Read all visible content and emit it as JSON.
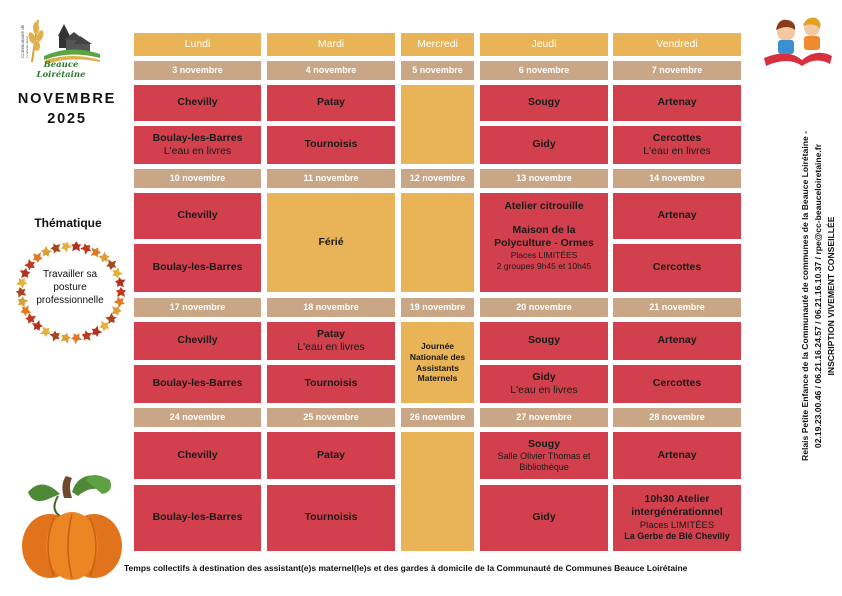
{
  "logo": {
    "name": "Beauce Loirétaine",
    "vertical": "Communauté de communes"
  },
  "title": {
    "line1": "NOVEMBRE",
    "line2": "2025"
  },
  "theme": {
    "label": "Thématique",
    "text": "Travailler sa posture professionnelle"
  },
  "days": [
    "Lundi",
    "Mardi",
    "Mercredi",
    "Jeudi",
    "Vendredi"
  ],
  "weeks": [
    {
      "dates": [
        "3 novembre",
        "4 novembre",
        "5 novembre",
        "6 novembre",
        "7 novembre"
      ],
      "lundi": {
        "a": "Chevilly",
        "b": "Boulay-les-Barres",
        "b_sub": "L'eau en livres"
      },
      "mardi": {
        "a": "Patay",
        "b": "Tournoisis"
      },
      "jeudi": {
        "a": "Sougy",
        "b": "Gidy"
      },
      "vendredi": {
        "a": "Artenay",
        "b": "Cercottes",
        "b_sub": "L'eau en livres"
      }
    },
    {
      "dates": [
        "10 novembre",
        "11 novembre",
        "12 novembre",
        "13 novembre",
        "14 novembre"
      ],
      "lundi": {
        "a": "Chevilly",
        "b": "Boulay-les-Barres"
      },
      "mardi": {
        "ferie": "Férié"
      },
      "jeudi": {
        "title": "Atelier citrouille",
        "place1": "Maison de la",
        "place2": "Polyculture - Ormes",
        "limit": "Places LIMITÉES",
        "groups": "2 groupes 9h45 et 10h45"
      },
      "vendredi": {
        "a": "Artenay",
        "b": "Cercottes"
      }
    },
    {
      "dates": [
        "17 novembre",
        "18 novembre",
        "19 novembre",
        "20 novembre",
        "21 novembre"
      ],
      "lundi": {
        "a": "Chevilly",
        "b": "Boulay-les-Barres"
      },
      "mardi": {
        "a": "Patay",
        "a_sub": "L'eau en livres",
        "b": "Tournoisis"
      },
      "mercredi": [
        "Journée",
        "Nationale des",
        "Assistants",
        "Maternels"
      ],
      "jeudi": {
        "a": "Sougy",
        "b": "Gidy",
        "b_sub": "L'eau en livres"
      },
      "vendredi": {
        "a": "Artenay",
        "b": "Cercottes"
      }
    },
    {
      "dates": [
        "24 novembre",
        "25 novembre",
        "26 novembre",
        "27 novembre",
        "28 novembre"
      ],
      "lundi": {
        "a": "Chevilly",
        "b": "Boulay-les-Barres"
      },
      "mardi": {
        "a": "Patay",
        "b": "Tournoisis"
      },
      "jeudi": {
        "a": "Sougy",
        "a_sub1": "Salle Olivier Thomas et",
        "a_sub2": "Bibliothèque",
        "b": "Gidy"
      },
      "vendredi": {
        "a": "Artenay",
        "b1": "10h30 Atelier",
        "b2": "intergénérationnel",
        "b_limit": "Places LIMITÉES",
        "b_place": "La Gerbe de Blé Chevilly"
      }
    }
  ],
  "side_text": {
    "line1": "Relais Petite Enfance de la Communauté de communes de la Beauce Loirétaine -",
    "line2": "02.19.23.00.46 / 06.21.16.24.57 / 06.21.16.10.37 / rpe@cc-beauceloiretaine.fr",
    "line3": "INSCRIPTION VIVEMENT CONSEILLÉE"
  },
  "footer": "Temps collectifs à destination des assistant(e)s maternel(le)s et des gardes à domicile de la Communauté de Communes Beauce Loirétaine",
  "colors": {
    "red": "#d1404c",
    "gold": "#e9b357",
    "tan": "#c9a685"
  }
}
